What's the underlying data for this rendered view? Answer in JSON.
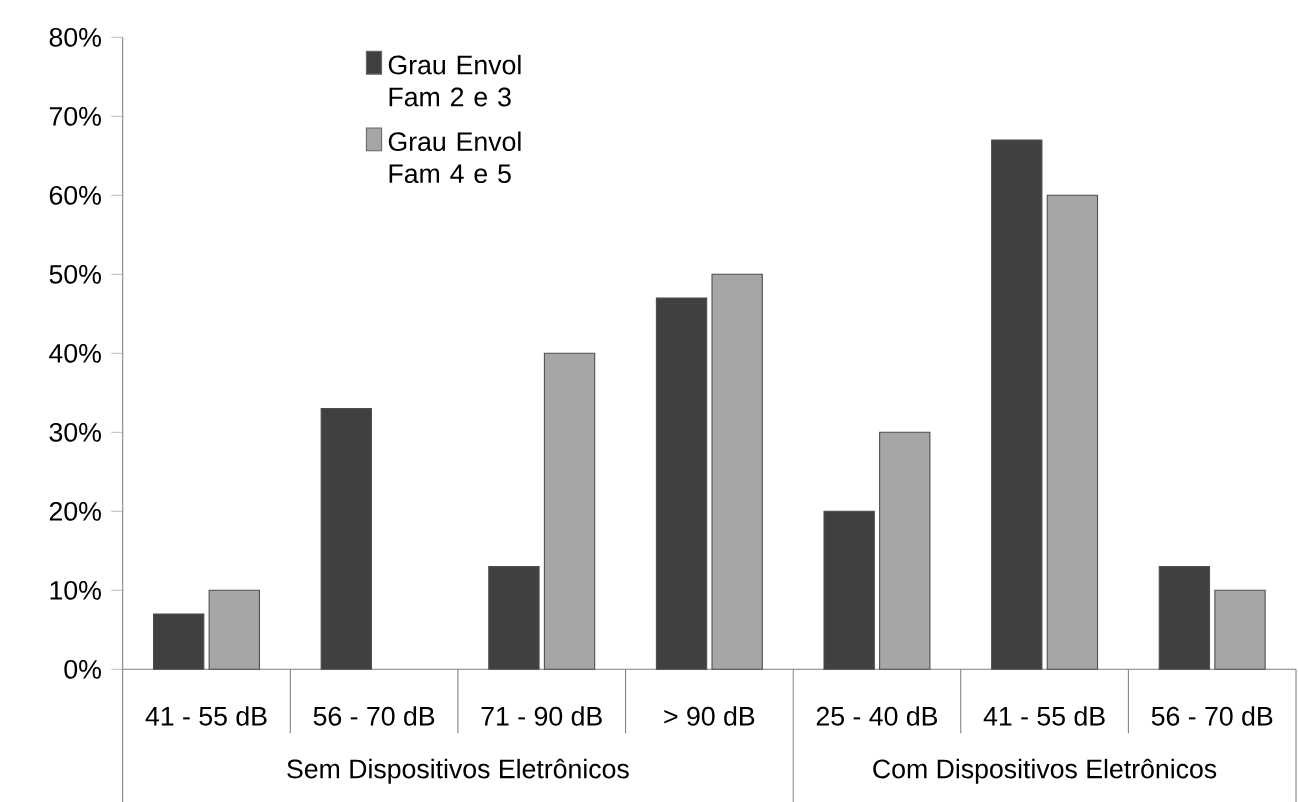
{
  "chart_data": {
    "type": "bar",
    "categories": [
      "41 - 55 dB",
      "56 - 70 dB",
      "71 - 90 dB",
      "> 90 dB",
      "25 - 40 dB",
      "41 - 55 dB",
      "56 - 70 dB"
    ],
    "series": [
      {
        "name": "Grau Envol Fam 2 e 3",
        "color": "#404040",
        "values": [
          7,
          33,
          13,
          47,
          20,
          67,
          13
        ]
      },
      {
        "name": "Grau Envol Fam 4 e 5",
        "color": "#a6a6a6",
        "values": [
          10,
          null,
          40,
          50,
          30,
          60,
          10
        ]
      }
    ],
    "ylim": [
      0,
      80
    ],
    "yticks": [
      {
        "value": 0,
        "label": "0%"
      },
      {
        "value": 10,
        "label": "10%"
      },
      {
        "value": 20,
        "label": "20%"
      },
      {
        "value": 30,
        "label": "30%"
      },
      {
        "value": 40,
        "label": "40%"
      },
      {
        "value": 50,
        "label": "50%"
      },
      {
        "value": 60,
        "label": "60%"
      },
      {
        "value": 70,
        "label": "70%"
      },
      {
        "value": 80,
        "label": "80%"
      }
    ],
    "legend": "top left",
    "annotations": [
      "Sem Dispositivos Eletrônicos",
      "Com Dispositivos Eletrônicos"
    ]
  }
}
